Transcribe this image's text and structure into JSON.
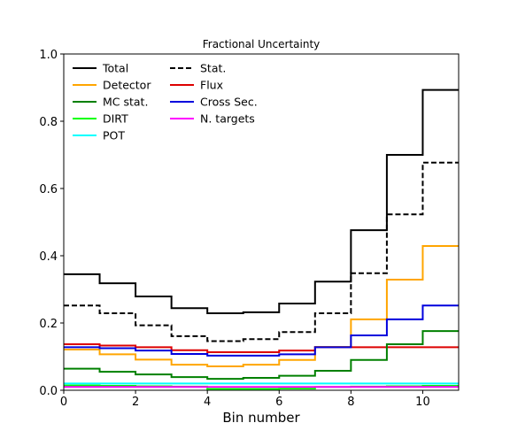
{
  "chart_data": {
    "type": "line",
    "style": "step",
    "title": "Fractional Uncertainty",
    "xlabel": "Bin number",
    "ylabel": "",
    "xlim": [
      0,
      11
    ],
    "ylim": [
      0,
      1.0
    ],
    "xticks": [
      "0",
      "2",
      "4",
      "6",
      "8",
      "10"
    ],
    "yticks": [
      "0.0",
      "0.2",
      "0.4",
      "0.6",
      "0.8",
      "1.0"
    ],
    "grid": false,
    "legend": {
      "placement": "top-left",
      "columns": 2
    },
    "bin_edges": [
      0,
      1,
      2,
      3,
      4,
      5,
      6,
      7,
      8,
      9,
      10,
      11
    ],
    "series": [
      {
        "name": "Total",
        "color": "#000000",
        "dash": "solid",
        "values": [
          0.345,
          0.318,
          0.279,
          0.244,
          0.229,
          0.232,
          0.258,
          0.323,
          0.476,
          0.7,
          0.893
        ]
      },
      {
        "name": "Stat.",
        "color": "#000000",
        "dash": "dashed",
        "values": [
          0.252,
          0.229,
          0.193,
          0.161,
          0.146,
          0.152,
          0.173,
          0.229,
          0.348,
          0.523,
          0.677
        ]
      },
      {
        "name": "Detector",
        "color": "#ffa500",
        "dash": "solid",
        "values": [
          0.121,
          0.107,
          0.091,
          0.076,
          0.071,
          0.076,
          0.09,
          0.129,
          0.211,
          0.329,
          0.429
        ]
      },
      {
        "name": "Flux",
        "color": "#dd0000",
        "dash": "solid",
        "values": [
          0.137,
          0.133,
          0.128,
          0.119,
          0.113,
          0.113,
          0.118,
          0.128,
          0.128,
          0.128,
          0.128
        ]
      },
      {
        "name": "MC stat.",
        "color": "#008000",
        "dash": "solid",
        "values": [
          0.064,
          0.055,
          0.047,
          0.039,
          0.034,
          0.037,
          0.043,
          0.058,
          0.09,
          0.137,
          0.176
        ]
      },
      {
        "name": "Cross Sec.",
        "color": "#0000dd",
        "dash": "solid",
        "values": [
          0.128,
          0.125,
          0.118,
          0.108,
          0.103,
          0.103,
          0.107,
          0.128,
          0.163,
          0.211,
          0.252
        ]
      },
      {
        "name": "DIRT",
        "color": "#00ff00",
        "dash": "solid",
        "values": [
          0.014,
          0.013,
          0.012,
          0.011,
          0.004,
          0.004,
          0.005,
          0.01,
          0.011,
          0.012,
          0.013
        ]
      },
      {
        "name": "N. targets",
        "color": "#ff00ff",
        "dash": "solid",
        "values": [
          0.01,
          0.01,
          0.01,
          0.01,
          0.01,
          0.01,
          0.01,
          0.01,
          0.01,
          0.01,
          0.01
        ]
      },
      {
        "name": "POT",
        "color": "#00ffff",
        "dash": "solid",
        "values": [
          0.02,
          0.02,
          0.02,
          0.02,
          0.02,
          0.02,
          0.02,
          0.02,
          0.02,
          0.02,
          0.02
        ]
      }
    ],
    "legend_order": [
      "Total",
      "Detector",
      "MC stat.",
      "DIRT",
      "POT",
      "Stat.",
      "Flux",
      "Cross Sec.",
      "N. targets"
    ]
  }
}
